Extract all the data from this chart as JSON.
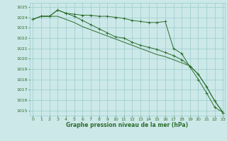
{
  "background_color": "#cce8e8",
  "grid_color": "#99cccc",
  "line_color": "#2d6e2d",
  "marker_color": "#2d6e2d",
  "xlabel": "Graphe pression niveau de la mer (hPa)",
  "tick_color": "#2d6e2d",
  "ylim": [
    1014.5,
    1025.4
  ],
  "xlim": [
    -0.4,
    23.2
  ],
  "yticks": [
    1015,
    1016,
    1017,
    1018,
    1019,
    1020,
    1021,
    1022,
    1023,
    1024,
    1025
  ],
  "xticks": [
    0,
    1,
    2,
    3,
    4,
    5,
    6,
    7,
    8,
    9,
    10,
    11,
    12,
    13,
    14,
    15,
    16,
    17,
    18,
    19,
    20,
    21,
    22,
    23
  ],
  "line1": [
    1023.8,
    1024.1,
    1024.1,
    1024.7,
    1024.4,
    1024.3,
    1024.2,
    1024.2,
    1024.1,
    1024.1,
    1024.0,
    1023.9,
    1023.7,
    1023.6,
    1023.5,
    1023.5,
    1023.6,
    1021.0,
    1020.5,
    1019.2,
    1018.0,
    1016.7,
    1015.3,
    1014.8
  ],
  "line2": [
    1023.8,
    1024.1,
    1024.1,
    1024.7,
    1024.4,
    1024.1,
    1023.7,
    1023.3,
    1022.9,
    1022.5,
    1022.1,
    1022.0,
    1021.6,
    1021.3,
    1021.1,
    1020.9,
    1020.6,
    1020.3,
    1019.9,
    1019.3,
    1018.5,
    1017.3,
    1015.9,
    1014.8
  ],
  "line3": [
    1023.8,
    1024.1,
    1024.1,
    1024.1,
    1023.8,
    1023.5,
    1023.1,
    1022.8,
    1022.5,
    1022.2,
    1021.9,
    1021.6,
    1021.3,
    1021.0,
    1020.7,
    1020.4,
    1020.2,
    1019.9,
    1019.6,
    1019.3,
    1018.5,
    1017.3,
    1015.9,
    1014.8
  ]
}
